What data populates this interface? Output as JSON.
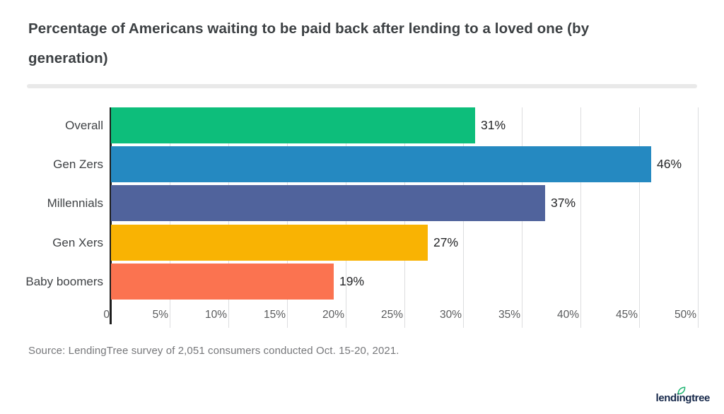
{
  "header": {
    "title": "Percentage of Americans waiting to be paid back after lending to a loved one (by generation)"
  },
  "chart_data": {
    "type": "bar",
    "orientation": "horizontal",
    "title": "Percentage of Americans waiting to be paid back after lending to a loved one (by generation)",
    "categories": [
      "Overall",
      "Gen Zers",
      "Millennials",
      "Gen Xers",
      "Baby boomers"
    ],
    "values": [
      31,
      46,
      37,
      27,
      19
    ],
    "value_labels": [
      "31%",
      "46%",
      "37%",
      "27%",
      "19%"
    ],
    "bar_colors": [
      "#0dbe7b",
      "#2589c1",
      "#50639c",
      "#f9b303",
      "#fb7350"
    ],
    "xlabel": "",
    "ylabel": "",
    "xlim": [
      0,
      50
    ],
    "x_ticks": [
      "0",
      "5%",
      "10%",
      "15%",
      "20%",
      "25%",
      "30%",
      "35%",
      "40%",
      "45%",
      "50%"
    ],
    "x_tick_values": [
      0,
      5,
      10,
      15,
      20,
      25,
      30,
      35,
      40,
      45,
      50
    ],
    "grid": true,
    "legend": "none"
  },
  "footer": {
    "source": "Source: LendingTree survey of 2,051 consumers conducted Oct. 15-20, 2021.",
    "logo_text": "lendingtree",
    "logo_text_color": "#16284a",
    "logo_leaf_color": "#21b573"
  }
}
